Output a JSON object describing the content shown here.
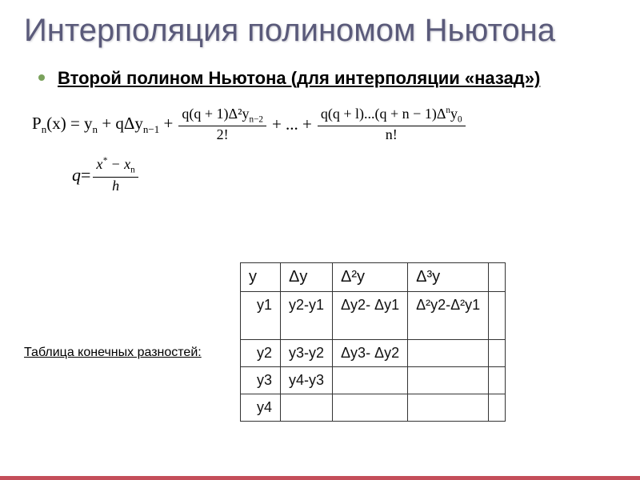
{
  "title": "Интерполяция полиномом Ньютона",
  "bullet": "Второй полином Ньютона (для интерполяции «назад»)",
  "formula": {
    "lhs": "P",
    "lhs_sub": "n",
    "arg": "(x) = y",
    "yn_sub": "n",
    "plus1": " + qΔy",
    "nm1_sub": "n−1",
    "plus2": " + ",
    "term2_num": "q(q + 1)Δ²y",
    "term2_num_sub": "n−2",
    "term2_den": "2!",
    "dots": " + ... + ",
    "termk_num_a": "q(q + l)...(q + n − 1)Δ",
    "termk_sup": "n",
    "termk_num_b": "y",
    "termk_sub": "0",
    "termk_den": "n!"
  },
  "q": {
    "lhs": "q",
    "eq": " = ",
    "num_a": "x",
    "num_star": "*",
    "num_b": " − x",
    "num_sub": "n",
    "den": "h"
  },
  "table_caption": "Таблица конечных разностей:",
  "table": {
    "headers": [
      "y",
      "Δy",
      "Δ²y",
      "Δ³y"
    ],
    "rows": [
      [
        "y1",
        "y2-y1",
        "Δy2- Δy1",
        "Δ²y2-Δ²y1"
      ],
      [
        "y2",
        "y3-y2",
        "Δy3- Δy2",
        ""
      ],
      [
        "y3",
        "y4-y3",
        "",
        ""
      ],
      [
        "y4",
        "",
        "",
        ""
      ]
    ]
  },
  "colors": {
    "title": "#5a5a7a",
    "bullet": "#7aa25c",
    "accent": "#c44e5a",
    "border": "#333333",
    "bg": "#ffffff"
  }
}
